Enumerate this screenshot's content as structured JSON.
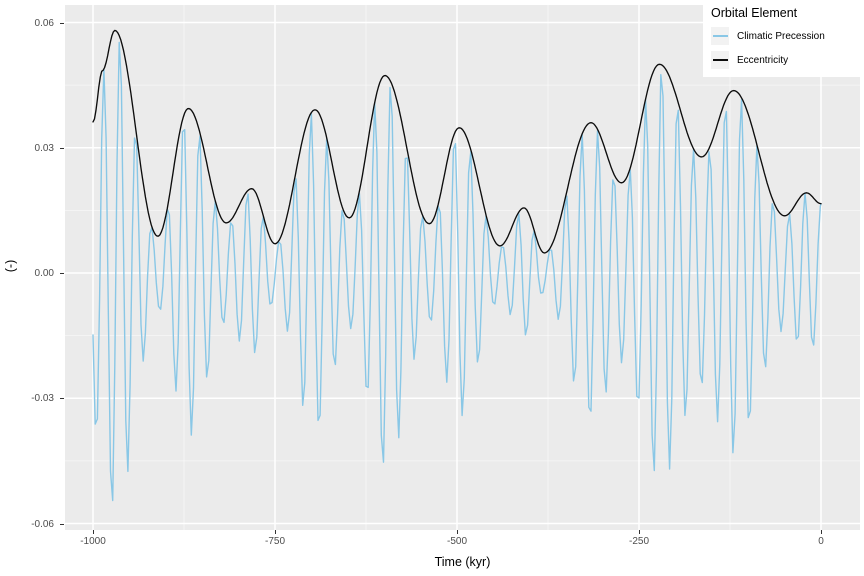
{
  "chart_data": {
    "type": "line",
    "title": "",
    "xlabel": "Time (kyr)",
    "ylabel": "(-)",
    "xlim": [
      -1000,
      0
    ],
    "ylim": [
      -0.0632,
      0.0642
    ],
    "grid": true,
    "panel_background": "#EBEBEB",
    "grid_major_color": "#FFFFFF",
    "grid_minor_color": "#FFFFFF",
    "axis_text_color": "#4D4D4D",
    "tick_mark_color": "#333333",
    "x_ticks": [
      {
        "t": -1000,
        "label": "-1000"
      },
      {
        "t": -750,
        "label": "-750"
      },
      {
        "t": -500,
        "label": "-500"
      },
      {
        "t": -250,
        "label": "-250"
      },
      {
        "t": 0,
        "label": "0"
      }
    ],
    "x_minor": [
      -875,
      -625,
      -375,
      -125
    ],
    "y_ticks": [
      {
        "v": 0.06,
        "label": "0.06"
      },
      {
        "v": 0.03,
        "label": "0.03"
      },
      {
        "v": 0.0,
        "label": "0.00"
      },
      {
        "v": -0.03,
        "label": "-0.03"
      },
      {
        "v": -0.06,
        "label": "-0.06"
      }
    ],
    "y_minor": [
      0.045,
      0.015,
      -0.015,
      -0.045
    ],
    "legend": {
      "title": "Orbital Element",
      "position": "top-right",
      "key_fill": "#F2F2F2",
      "entries": [
        {
          "label": "Climatic Precession",
          "color": "#89C7E6"
        },
        {
          "label": "Eccentricity",
          "color": "#0D0D0D"
        }
      ]
    },
    "series": [
      {
        "name": "Climatic Precession",
        "color": "#89C7E6",
        "stroke_width": 1.4,
        "generated": true,
        "model": "p(t) = -E(t) * cos(2*pi*(t - trough_t)/period_kyr)",
        "period_kyr": 21.89,
        "trough_t": -996,
        "sample_step_kyr": 3
      },
      {
        "name": "Eccentricity",
        "color": "#0D0D0D",
        "stroke_width": 1.35,
        "sample_step_kyr": 2,
        "points": [
          [
            -1000,
            0.0362
          ],
          [
            -987,
            0.0485
          ],
          [
            -970,
            0.0581
          ],
          [
            -911,
            0.0088
          ],
          [
            -869,
            0.0394
          ],
          [
            -817,
            0.012
          ],
          [
            -782,
            0.0202
          ],
          [
            -750,
            0.007
          ],
          [
            -695,
            0.0391
          ],
          [
            -648,
            0.0132
          ],
          [
            -599,
            0.0473
          ],
          [
            -538,
            0.0118
          ],
          [
            -497,
            0.0348
          ],
          [
            -441,
            0.0065
          ],
          [
            -408,
            0.0156
          ],
          [
            -380,
            0.0048
          ],
          [
            -316,
            0.036
          ],
          [
            -274,
            0.0216
          ],
          [
            -222,
            0.05
          ],
          [
            -164,
            0.0278
          ],
          [
            -120,
            0.0437
          ],
          [
            -50,
            0.0137
          ],
          [
            -20,
            0.0192
          ],
          [
            0,
            0.0166
          ]
        ]
      }
    ]
  }
}
